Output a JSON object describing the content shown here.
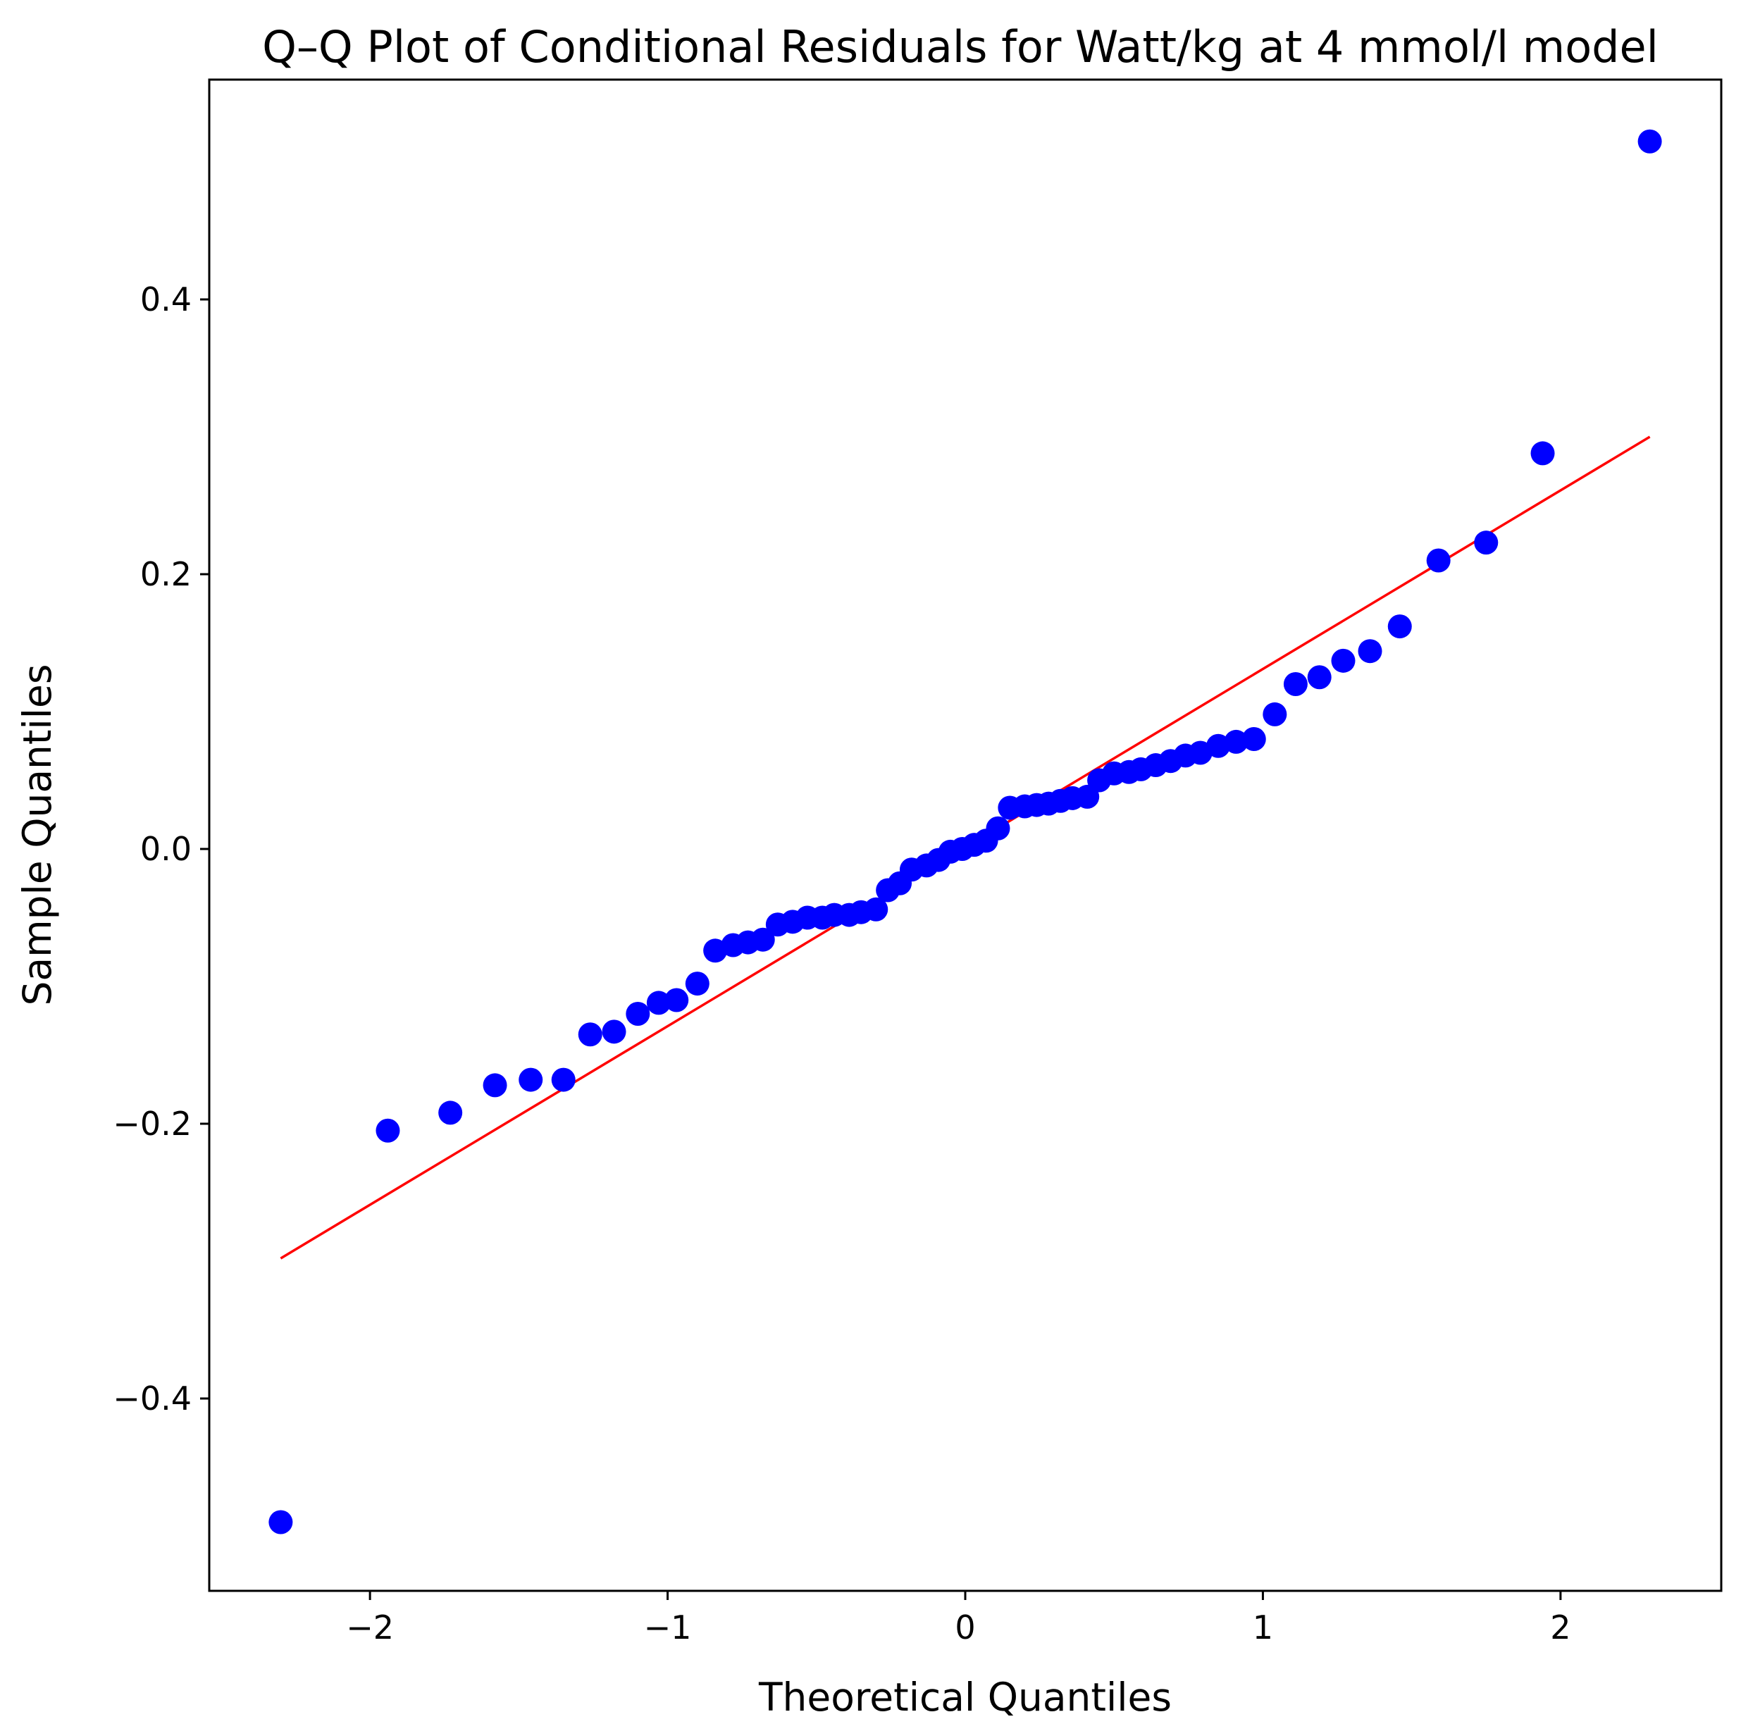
{
  "chart_data": {
    "type": "scatter",
    "title": "Q–Q Plot of Conditional Residuals for Watt/kg at 4 mmol/l model",
    "xlabel": "Theoretical Quantiles",
    "ylabel": "Sample Quantiles",
    "xlim": [
      -2.54,
      2.54
    ],
    "ylim": [
      -0.54,
      0.56
    ],
    "x_ticks": [
      {
        "value": -2,
        "label": "−2"
      },
      {
        "value": -1,
        "label": "−1"
      },
      {
        "value": 0,
        "label": "0"
      },
      {
        "value": 1,
        "label": "1"
      },
      {
        "value": 2,
        "label": "2"
      }
    ],
    "y_ticks": [
      {
        "value": -0.4,
        "label": "−0.4"
      },
      {
        "value": -0.2,
        "label": "−0.2"
      },
      {
        "value": 0.0,
        "label": "0.0"
      },
      {
        "value": 0.2,
        "label": "0.2"
      },
      {
        "value": 0.4,
        "label": "0.4"
      }
    ],
    "grid": false,
    "point_color": "#0000ff",
    "line_color": "#ff0000",
    "series": [
      {
        "name": "Sample quantiles",
        "x": [
          -2.3,
          -1.94,
          -1.73,
          -1.58,
          -1.46,
          -1.35,
          -1.26,
          -1.18,
          -1.1,
          -1.03,
          -0.97,
          -0.9,
          -0.84,
          -0.78,
          -0.73,
          -0.68,
          -0.63,
          -0.58,
          -0.53,
          -0.48,
          -0.44,
          -0.39,
          -0.35,
          -0.3,
          -0.26,
          -0.22,
          -0.18,
          -0.13,
          -0.09,
          -0.05,
          -0.01,
          0.03,
          0.07,
          0.11,
          0.15,
          0.2,
          0.24,
          0.28,
          0.32,
          0.36,
          0.41,
          0.45,
          0.5,
          0.55,
          0.59,
          0.64,
          0.69,
          0.74,
          0.79,
          0.85,
          0.91,
          0.97,
          1.04,
          1.11,
          1.19,
          1.27,
          1.36,
          1.46,
          1.59,
          1.75,
          1.94,
          2.3
        ],
        "values": [
          -0.49,
          -0.205,
          -0.192,
          -0.172,
          -0.168,
          -0.168,
          -0.135,
          -0.133,
          -0.12,
          -0.112,
          -0.11,
          -0.098,
          -0.074,
          -0.07,
          -0.068,
          -0.066,
          -0.055,
          -0.053,
          -0.05,
          -0.05,
          -0.048,
          -0.048,
          -0.046,
          -0.044,
          -0.03,
          -0.025,
          -0.015,
          -0.012,
          -0.008,
          -0.002,
          0.0,
          0.003,
          0.006,
          0.015,
          0.03,
          0.031,
          0.032,
          0.033,
          0.035,
          0.037,
          0.038,
          0.05,
          0.055,
          0.056,
          0.058,
          0.061,
          0.064,
          0.068,
          0.07,
          0.075,
          0.078,
          0.08,
          0.098,
          0.12,
          0.125,
          0.137,
          0.144,
          0.162,
          0.21,
          0.223,
          0.288,
          0.515
        ]
      },
      {
        "name": "Reference line",
        "type": "line",
        "x": [
          -2.3,
          2.3
        ],
        "values": [
          -0.298,
          0.3
        ]
      }
    ]
  }
}
